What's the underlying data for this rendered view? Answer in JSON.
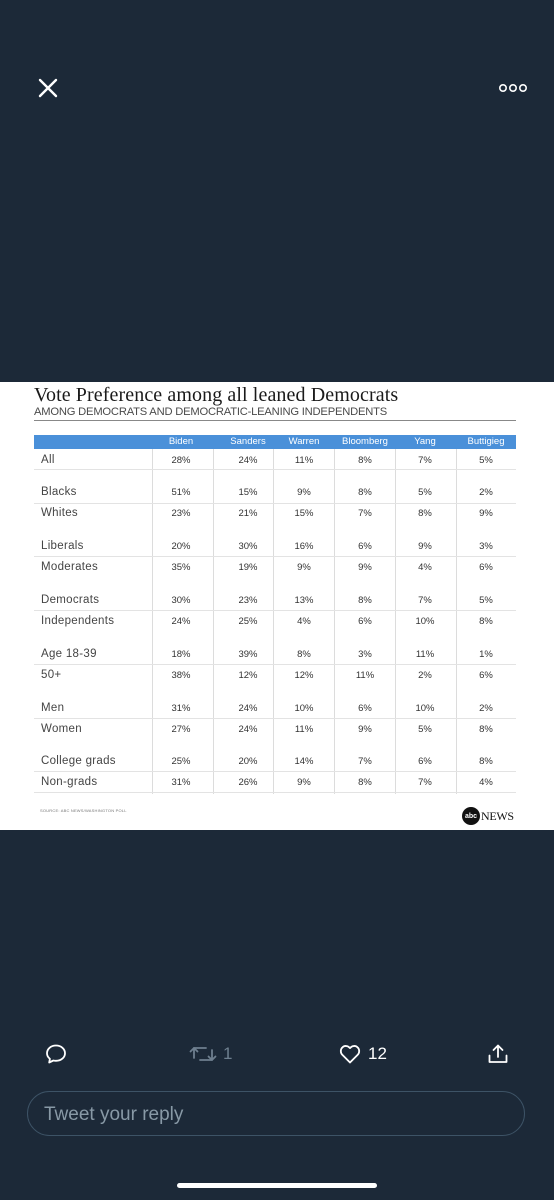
{
  "chart_data": {
    "type": "table",
    "title": "Vote Preference among all leaned Democrats",
    "subtitle": "AMONG DEMOCRATS AND DEMOCRATIC-LEANING INDEPENDENTS",
    "columns": [
      "Biden",
      "Sanders",
      "Warren",
      "Bloomberg",
      "Yang",
      "Buttigieg"
    ],
    "rows": [
      {
        "label": "All",
        "values": [
          "28%",
          "24%",
          "11%",
          "8%",
          "7%",
          "5%"
        ]
      },
      {
        "label": "Blacks",
        "values": [
          "51%",
          "15%",
          "9%",
          "8%",
          "5%",
          "2%"
        ]
      },
      {
        "label": "Whites",
        "values": [
          "23%",
          "21%",
          "15%",
          "7%",
          "8%",
          "9%"
        ]
      },
      {
        "label": "Liberals",
        "values": [
          "20%",
          "30%",
          "16%",
          "6%",
          "9%",
          "3%"
        ]
      },
      {
        "label": "Moderates",
        "values": [
          "35%",
          "19%",
          "9%",
          "9%",
          "4%",
          "6%"
        ]
      },
      {
        "label": "Democrats",
        "values": [
          "30%",
          "23%",
          "13%",
          "8%",
          "7%",
          "5%"
        ]
      },
      {
        "label": "Independents",
        "values": [
          "24%",
          "25%",
          "4%",
          "6%",
          "10%",
          "8%"
        ]
      },
      {
        "label": "Age 18-39",
        "values": [
          "18%",
          "39%",
          "8%",
          "3%",
          "11%",
          "1%"
        ]
      },
      {
        "label": "50+",
        "values": [
          "38%",
          "12%",
          "12%",
          "11%",
          "2%",
          "6%"
        ]
      },
      {
        "label": "Men",
        "values": [
          "31%",
          "24%",
          "10%",
          "6%",
          "10%",
          "2%"
        ]
      },
      {
        "label": "Women",
        "values": [
          "27%",
          "24%",
          "11%",
          "9%",
          "5%",
          "8%"
        ]
      },
      {
        "label": "College grads",
        "values": [
          "25%",
          "20%",
          "14%",
          "7%",
          "6%",
          "8%"
        ]
      },
      {
        "label": "Non-grads",
        "values": [
          "31%",
          "26%",
          "9%",
          "8%",
          "7%",
          "4%"
        ]
      }
    ],
    "source": "SOURCE: ABC NEWS/WASHINGTON POLL",
    "header_color": "#4a90d9"
  },
  "logo": {
    "abc": "abc",
    "news": "NEWS"
  },
  "actions": {
    "reply_icon": "reply-icon",
    "retweet_icon": "retweet-icon",
    "retweet_count": "1",
    "like_icon": "heart-icon",
    "like_count": "12",
    "share_icon": "share-icon"
  },
  "reply": {
    "placeholder": "Tweet your reply"
  },
  "colors": {
    "background": "#1c2938",
    "muted": "#6e7f8f",
    "reply_border": "#3d5366"
  }
}
